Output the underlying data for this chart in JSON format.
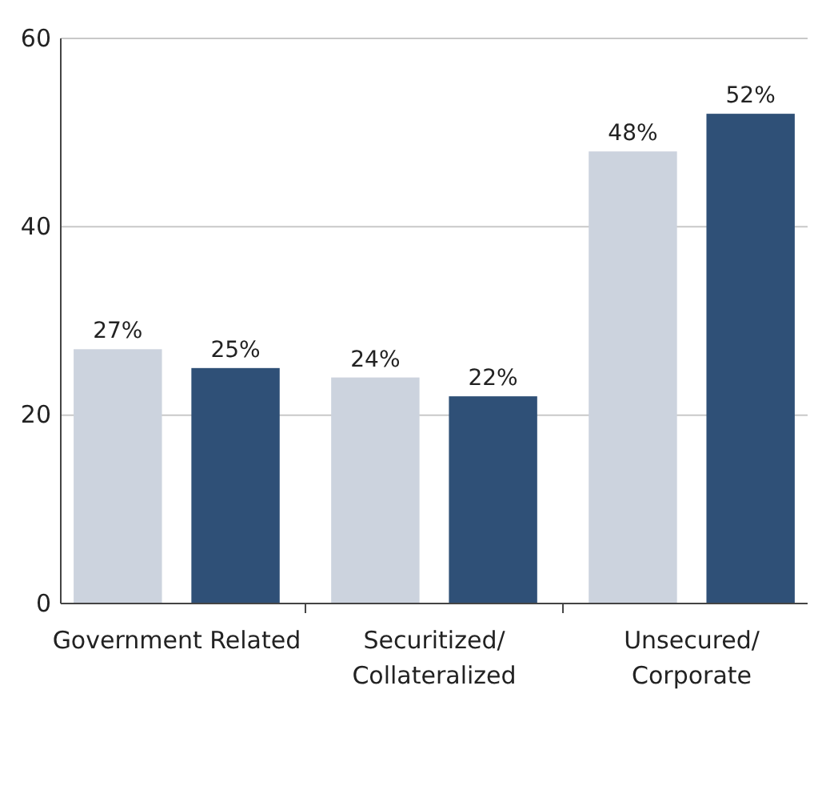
{
  "chart_data": {
    "type": "bar",
    "categories": [
      "Government Related",
      "Securitized/\nCollateralized",
      "Unsecured/\nCorporate"
    ],
    "series": [
      {
        "color": "#ccd3de",
        "values": [
          27,
          24,
          48
        ],
        "value_labels": [
          "27%",
          "24%",
          "48%"
        ]
      },
      {
        "color": "#2f5077",
        "values": [
          25,
          22,
          52
        ],
        "value_labels": [
          "25%",
          "22%",
          "52%"
        ]
      }
    ],
    "ylim": [
      0,
      60
    ],
    "yticks": [
      0,
      20,
      40,
      60
    ],
    "grid": "y"
  }
}
